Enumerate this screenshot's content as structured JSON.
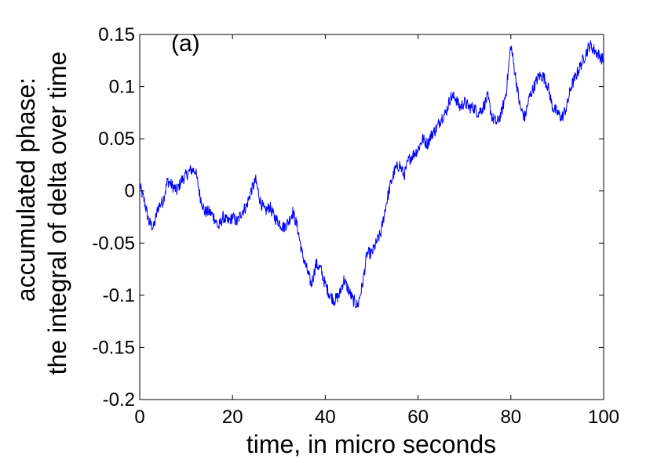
{
  "chart_data": {
    "type": "line",
    "annotation": "(a)",
    "xlabel": "time, in micro seconds",
    "ylabel_lines": [
      "accumulated phase:",
      "the integral of delta over time"
    ],
    "xlim": [
      0,
      100
    ],
    "ylim": [
      -0.2,
      0.15
    ],
    "grid": false,
    "legend": "none",
    "x_ticks": [
      0,
      20,
      40,
      60,
      80,
      100
    ],
    "x_tick_labels": [
      "0",
      "20",
      "40",
      "60",
      "80",
      "100"
    ],
    "y_ticks": [
      0.15,
      0.1,
      0.05,
      0,
      -0.05,
      -0.1,
      -0.15,
      -0.2
    ],
    "y_tick_labels": [
      "0.15",
      "0.1",
      "0.05",
      "0",
      "-0.05",
      "-0.1",
      "-0.15",
      "-0.2"
    ],
    "line_color": "#0000ff",
    "series": [
      {
        "x": [
          0,
          1,
          2,
          3,
          4,
          5,
          6,
          7,
          8,
          9,
          10,
          11,
          12,
          13,
          14,
          15,
          16,
          17,
          18,
          19,
          20,
          21,
          22,
          23,
          24,
          25,
          26,
          27,
          28,
          29,
          30,
          31,
          32,
          33,
          34,
          35,
          36,
          37,
          38,
          39,
          40,
          41,
          42,
          43,
          44,
          45,
          46,
          47,
          48,
          49,
          50,
          51,
          52,
          53,
          54,
          55,
          56,
          57,
          58,
          59,
          60,
          61,
          62,
          63,
          64,
          65,
          66,
          67,
          68,
          69,
          70,
          71,
          72,
          73,
          74,
          75,
          76,
          77,
          78,
          79,
          80,
          81,
          82,
          83,
          84,
          85,
          86,
          87,
          88,
          89,
          90,
          91,
          92,
          93,
          94,
          95,
          96,
          97,
          98,
          99,
          100
        ],
        "y": [
          0.005,
          -0.01,
          -0.03,
          -0.035,
          -0.015,
          -0.01,
          0.01,
          0.005,
          0.0,
          0.01,
          0.015,
          0.02,
          0.02,
          -0.005,
          -0.02,
          -0.02,
          -0.025,
          -0.035,
          -0.025,
          -0.03,
          -0.025,
          -0.03,
          -0.02,
          -0.015,
          0.0,
          0.01,
          -0.01,
          -0.02,
          -0.015,
          -0.025,
          -0.03,
          -0.035,
          -0.03,
          -0.02,
          -0.035,
          -0.06,
          -0.075,
          -0.09,
          -0.07,
          -0.075,
          -0.09,
          -0.1,
          -0.105,
          -0.1,
          -0.085,
          -0.095,
          -0.105,
          -0.11,
          -0.09,
          -0.06,
          -0.06,
          -0.05,
          -0.04,
          -0.015,
          0.005,
          0.02,
          0.025,
          0.015,
          0.03,
          0.035,
          0.04,
          0.05,
          0.045,
          0.055,
          0.06,
          0.07,
          0.075,
          0.09,
          0.09,
          0.08,
          0.085,
          0.08,
          0.08,
          0.075,
          0.08,
          0.09,
          0.07,
          0.065,
          0.075,
          0.095,
          0.14,
          0.11,
          0.08,
          0.07,
          0.09,
          0.1,
          0.11,
          0.11,
          0.1,
          0.08,
          0.075,
          0.07,
          0.08,
          0.1,
          0.11,
          0.12,
          0.13,
          0.14,
          0.135,
          0.13,
          0.125
        ]
      }
    ]
  }
}
